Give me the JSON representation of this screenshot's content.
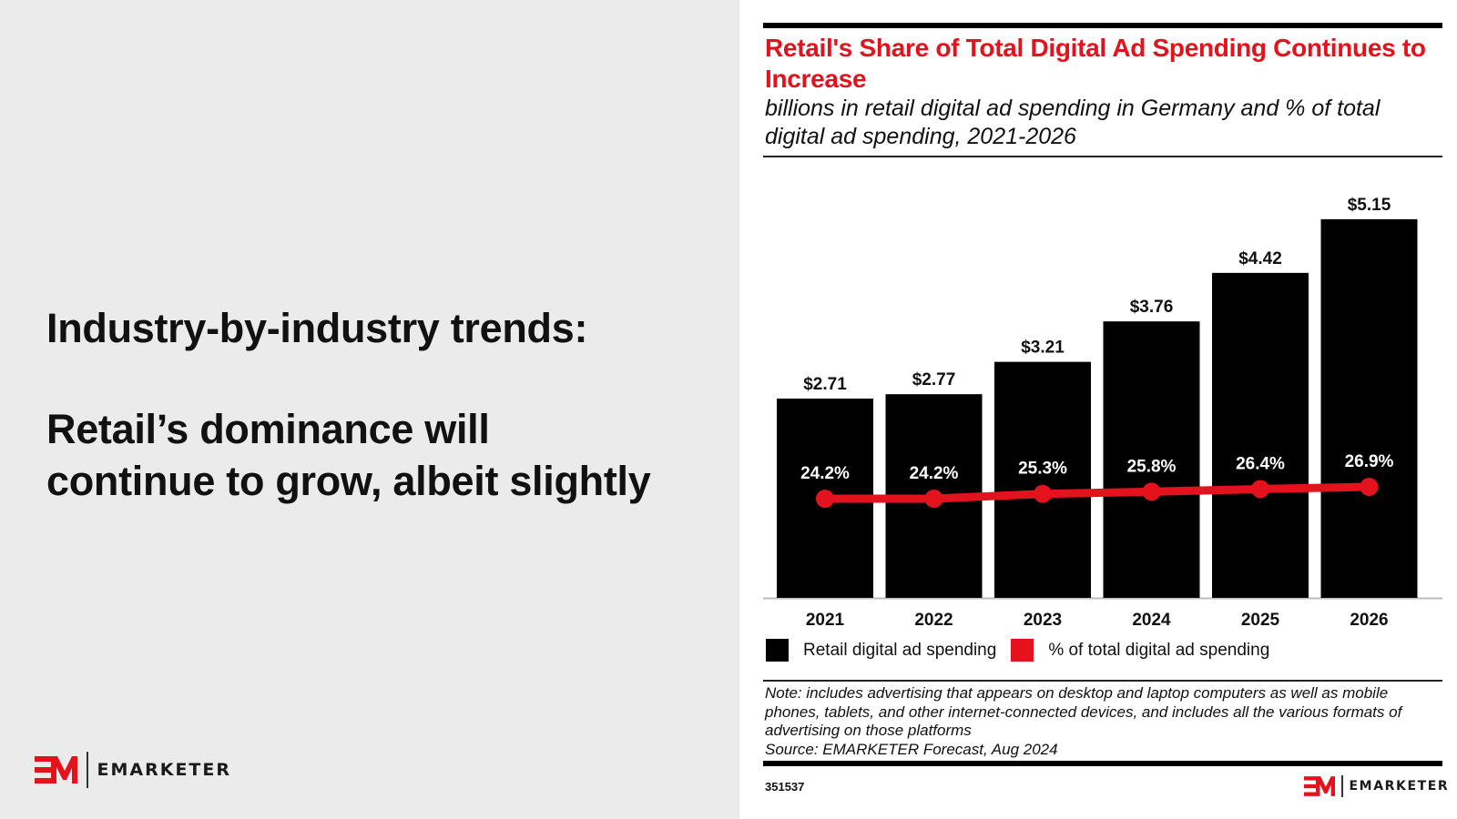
{
  "slide": {
    "headline_1": "Industry-by-industry trends:",
    "headline_2_line1": "Retail’s dominance will",
    "headline_2_line2": "continue to grow, albeit slightly",
    "logo_text": "EMARKETER"
  },
  "chart_data": {
    "type": "bar",
    "title": "Retail's Share of Total Digital Ad Spending Continues to Increase",
    "subtitle": "billions in retail digital ad spending in Germany and % of total digital ad spending, 2021-2026",
    "categories": [
      "2021",
      "2022",
      "2023",
      "2024",
      "2025",
      "2026"
    ],
    "series": [
      {
        "name": "Retail digital ad spending",
        "type": "bar",
        "color": "#000000",
        "values": [
          2.71,
          2.77,
          3.21,
          3.76,
          4.42,
          5.15
        ],
        "labels": [
          "$2.71",
          "$2.77",
          "$3.21",
          "$3.76",
          "$4.42",
          "$5.15"
        ]
      },
      {
        "name": "% of total digital ad spending",
        "type": "line",
        "color": "#e3121c",
        "values": [
          24.2,
          24.2,
          25.3,
          25.8,
          26.4,
          26.9
        ],
        "labels": [
          "24.2%",
          "24.2%",
          "25.3%",
          "25.8%",
          "26.4%",
          "26.9%"
        ]
      }
    ],
    "xlabel": "",
    "ylabel": "",
    "grid": false,
    "legend": "bottom-left",
    "note": "Note: includes advertising that appears on desktop and laptop computers as well as mobile phones, tablets, and other internet-connected devices, and includes all the various formats of advertising on those platforms",
    "source": "Source: EMARKETER Forecast, Aug 2024",
    "chart_id": "351537",
    "brand": "EMARKETER"
  },
  "colors": {
    "accent": "#e3121c",
    "bar": "#000000",
    "panel_bg": "#ebebeb"
  }
}
